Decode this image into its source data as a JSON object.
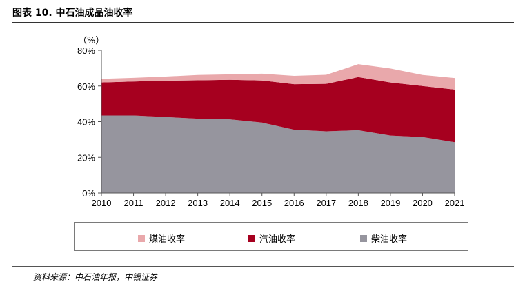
{
  "title": "图表 10. 中石油成品油收率",
  "source": "资料来源：中石油年报，中银证券",
  "chart_data": {
    "type": "area",
    "stacked": true,
    "y_unit": "（%）",
    "ylim": [
      0,
      80
    ],
    "yticks": [
      "0%",
      "20%",
      "40%",
      "60%",
      "80%"
    ],
    "ytick_values": [
      0,
      20,
      40,
      60,
      80
    ],
    "categories": [
      "2010",
      "2011",
      "2012",
      "2013",
      "2014",
      "2015",
      "2016",
      "2017",
      "2018",
      "2019",
      "2020",
      "2021"
    ],
    "series": [
      {
        "name": "柴油收率",
        "color": "#96959E",
        "values": [
          43.5,
          43.5,
          42.6,
          41.7,
          41.3,
          39.5,
          35.5,
          34.6,
          35.2,
          32.2,
          31.4,
          28.5
        ]
      },
      {
        "name": "汽油收率",
        "color": "#A6001F",
        "values": [
          18.5,
          19.0,
          20.4,
          21.5,
          22.2,
          23.6,
          25.5,
          26.6,
          29.8,
          29.8,
          28.6,
          29.5
        ]
      },
      {
        "name": "煤油收率",
        "color": "#E9A8AB",
        "values": [
          2.0,
          2.1,
          2.3,
          3.0,
          3.0,
          3.8,
          4.7,
          5.1,
          7.2,
          7.8,
          6.2,
          6.5
        ]
      }
    ],
    "legend": {
      "position": "bottom",
      "order": [
        "煤油收率",
        "汽油收率",
        "柴油收率"
      ]
    },
    "grid": false
  }
}
